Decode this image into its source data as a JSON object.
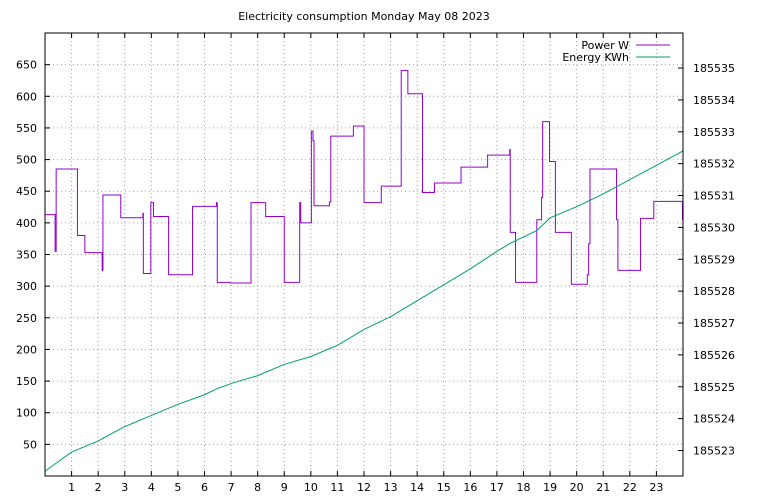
{
  "chart_data": {
    "type": "line",
    "title": "Electricity consumption Monday May 08 2023",
    "xlabel": "",
    "ylabel": "",
    "y2label": "",
    "xlim": [
      0,
      24
    ],
    "ylim": [
      0,
      700
    ],
    "y2lim": [
      185522.2,
      185536.1
    ],
    "x_ticks": [
      1,
      2,
      3,
      4,
      5,
      6,
      7,
      8,
      9,
      10,
      11,
      12,
      13,
      14,
      15,
      16,
      17,
      18,
      19,
      20,
      21,
      22,
      23
    ],
    "y_ticks": [
      50,
      100,
      150,
      200,
      250,
      300,
      350,
      400,
      450,
      500,
      550,
      600,
      650
    ],
    "y2_ticks": [
      185523,
      185524,
      185525,
      185526,
      185527,
      185528,
      185529,
      185530,
      185531,
      185532,
      185533,
      185534,
      185535
    ],
    "grid": true,
    "legend_position": "top-right",
    "series": [
      {
        "name": "Power W",
        "axis": "left",
        "color": "#9400d3",
        "step": true,
        "points": [
          [
            0.0,
            413
          ],
          [
            0.35,
            413
          ],
          [
            0.38,
            355
          ],
          [
            0.42,
            485
          ],
          [
            1.2,
            485
          ],
          [
            1.22,
            380
          ],
          [
            1.45,
            380
          ],
          [
            1.5,
            353
          ],
          [
            2.1,
            353
          ],
          [
            2.15,
            325
          ],
          [
            2.18,
            444
          ],
          [
            2.8,
            444
          ],
          [
            2.85,
            408
          ],
          [
            3.65,
            408
          ],
          [
            3.68,
            415
          ],
          [
            3.7,
            320
          ],
          [
            3.95,
            320
          ],
          [
            3.98,
            432
          ],
          [
            4.05,
            432
          ],
          [
            4.08,
            410
          ],
          [
            4.6,
            410
          ],
          [
            4.65,
            318
          ],
          [
            5.5,
            318
          ],
          [
            5.55,
            426
          ],
          [
            6.4,
            426
          ],
          [
            6.45,
            432
          ],
          [
            6.48,
            306
          ],
          [
            6.9,
            306
          ],
          [
            6.95,
            305
          ],
          [
            7.7,
            305
          ],
          [
            7.75,
            432
          ],
          [
            8.25,
            432
          ],
          [
            8.3,
            410
          ],
          [
            8.95,
            410
          ],
          [
            9.0,
            306
          ],
          [
            9.55,
            306
          ],
          [
            9.58,
            432
          ],
          [
            9.62,
            400
          ],
          [
            10.0,
            400
          ],
          [
            10.02,
            545
          ],
          [
            10.08,
            530
          ],
          [
            10.12,
            427
          ],
          [
            10.65,
            427
          ],
          [
            10.7,
            433
          ],
          [
            10.75,
            537
          ],
          [
            11.55,
            537
          ],
          [
            11.6,
            553
          ],
          [
            11.95,
            553
          ],
          [
            12.0,
            432
          ],
          [
            12.6,
            432
          ],
          [
            12.65,
            458
          ],
          [
            13.35,
            458
          ],
          [
            13.4,
            641
          ],
          [
            13.6,
            641
          ],
          [
            13.65,
            604
          ],
          [
            14.15,
            604
          ],
          [
            14.2,
            448
          ],
          [
            14.6,
            448
          ],
          [
            14.65,
            463
          ],
          [
            15.6,
            463
          ],
          [
            15.65,
            488
          ],
          [
            16.6,
            488
          ],
          [
            16.65,
            507
          ],
          [
            17.45,
            507
          ],
          [
            17.48,
            516
          ],
          [
            17.5,
            385
          ],
          [
            17.65,
            385
          ],
          [
            17.7,
            306
          ],
          [
            18.45,
            306
          ],
          [
            18.5,
            405
          ],
          [
            18.65,
            405
          ],
          [
            18.68,
            440
          ],
          [
            18.72,
            560
          ],
          [
            18.95,
            560
          ],
          [
            18.98,
            497
          ],
          [
            19.15,
            497
          ],
          [
            19.2,
            385
          ],
          [
            19.75,
            385
          ],
          [
            19.8,
            303
          ],
          [
            20.35,
            303
          ],
          [
            20.4,
            318
          ],
          [
            20.45,
            367
          ],
          [
            20.5,
            485
          ],
          [
            21.45,
            485
          ],
          [
            21.5,
            405
          ],
          [
            21.55,
            325
          ],
          [
            22.35,
            325
          ],
          [
            22.4,
            407
          ],
          [
            22.85,
            407
          ],
          [
            22.9,
            434
          ],
          [
            23.95,
            434
          ],
          [
            23.98,
            405
          ],
          [
            24.0,
            323
          ]
        ]
      },
      {
        "name": "Energy KWh",
        "axis": "right",
        "color": "#009e73",
        "step": false,
        "points": [
          [
            0,
            185522.35
          ],
          [
            1,
            185522.95
          ],
          [
            2,
            185523.3
          ],
          [
            3,
            185523.75
          ],
          [
            4,
            185524.1
          ],
          [
            5,
            185524.45
          ],
          [
            6,
            185524.75
          ],
          [
            6.5,
            185524.95
          ],
          [
            7,
            185525.1
          ],
          [
            8,
            185525.35
          ],
          [
            9,
            185525.7
          ],
          [
            10,
            185525.95
          ],
          [
            11,
            185526.3
          ],
          [
            12,
            185526.8
          ],
          [
            13,
            185527.2
          ],
          [
            14,
            185527.7
          ],
          [
            15,
            185528.2
          ],
          [
            16,
            185528.7
          ],
          [
            17,
            185529.25
          ],
          [
            17.5,
            185529.5
          ],
          [
            18,
            185529.7
          ],
          [
            18.5,
            185529.9
          ],
          [
            19,
            185530.3
          ],
          [
            20,
            185530.65
          ],
          [
            21,
            185531.05
          ],
          [
            22,
            185531.5
          ],
          [
            23,
            185531.95
          ],
          [
            24,
            185532.4
          ]
        ]
      }
    ]
  }
}
